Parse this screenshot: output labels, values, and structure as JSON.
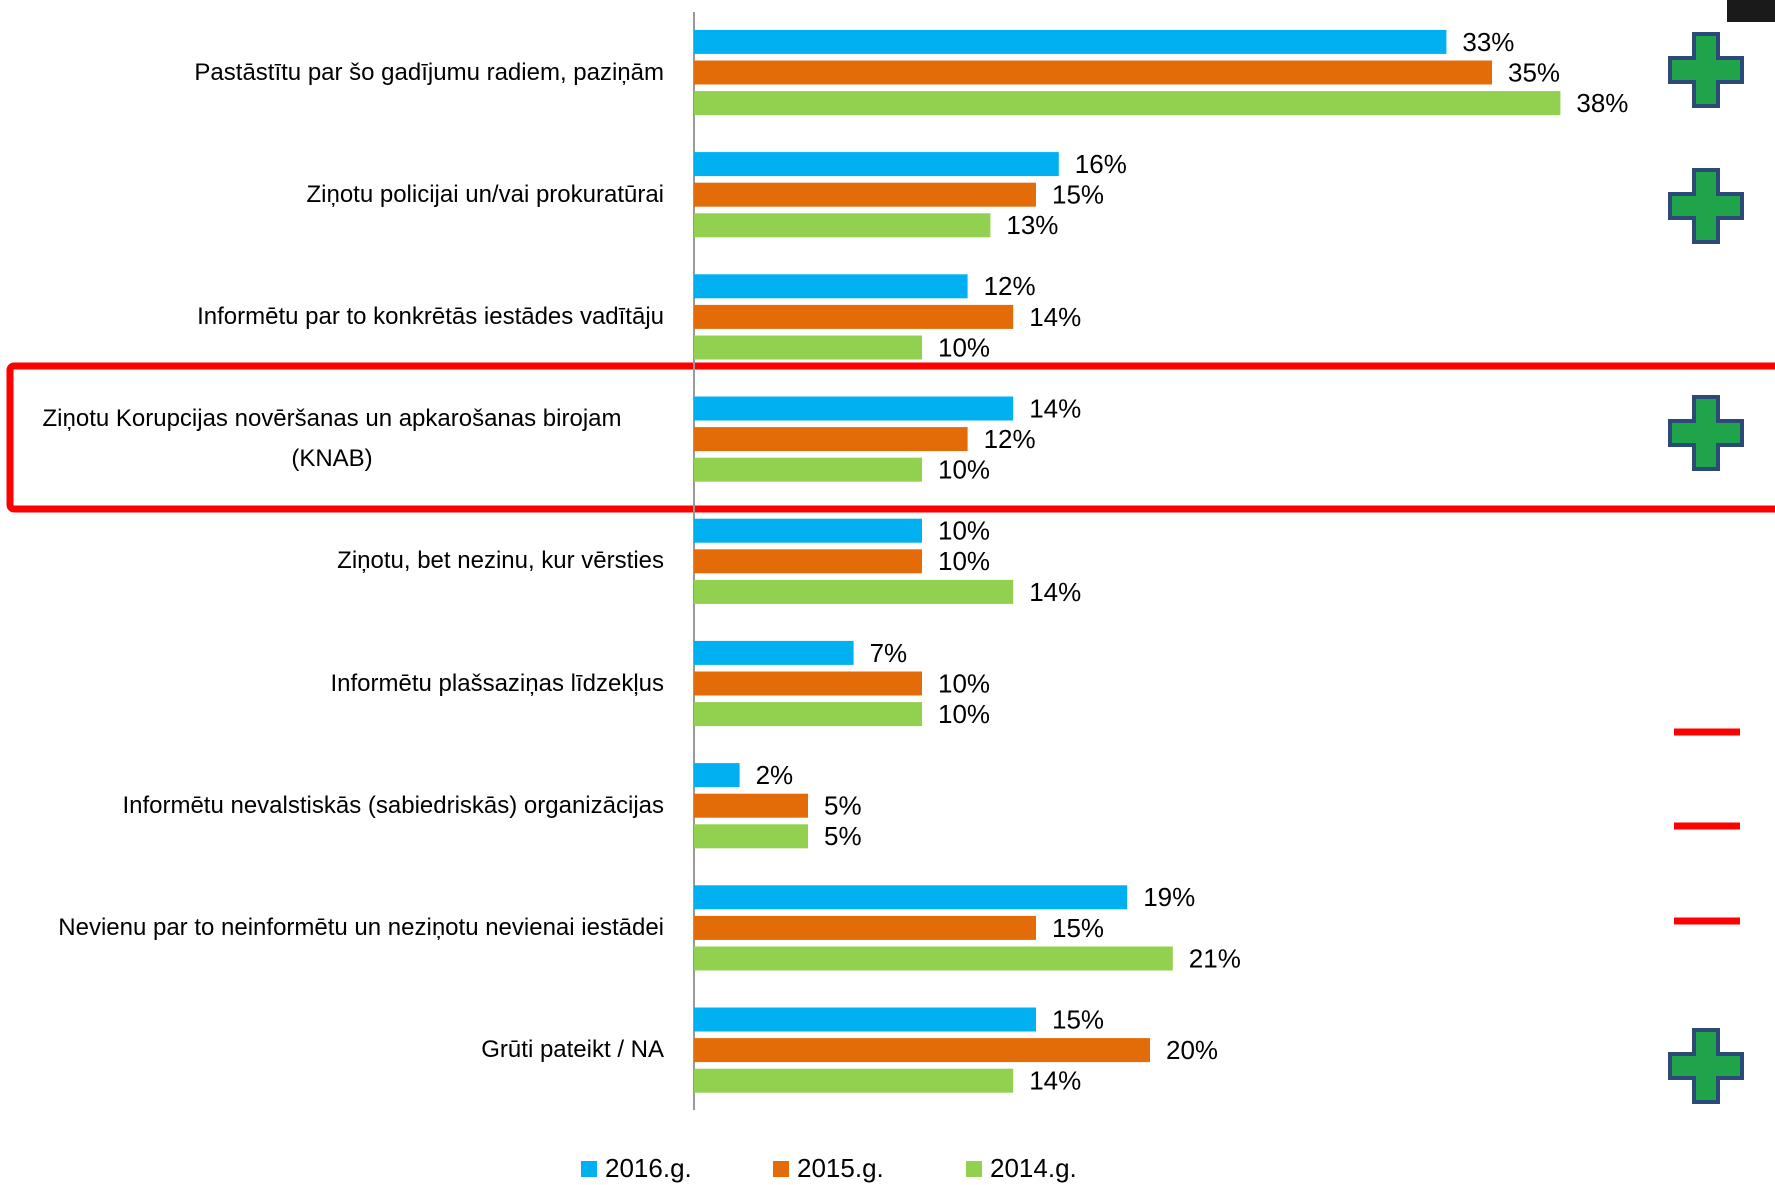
{
  "chart_data": {
    "type": "bar",
    "orientation": "horizontal",
    "categories": [
      "Pastāstītu par šo gadījumu radiem, paziņām",
      "Ziņotu policijai un/vai prokuratūrai",
      "Informētu par to konkrētās iestādes vadītāju",
      "Ziņotu Korupcijas novēršanas un apkarošanas birojam (KNAB)",
      "Ziņotu, bet nezinu, kur vērsties",
      "Informētu plašsaziņas līdzekļus",
      "Informētu nevalstiskās (sabiedriskās) organizācijas",
      "Nevienu par to neinformētu un neziņotu nevienai iestādei",
      "Grūti pateikt / NA"
    ],
    "series": [
      {
        "name": "2016.g.",
        "color": "#00b0f0",
        "values": [
          33,
          16,
          12,
          14,
          10,
          7,
          2,
          19,
          15
        ],
        "value_labels": [
          "33%",
          "16%",
          "12%",
          "14%",
          "10%",
          "7%",
          "2%",
          "19%",
          "15%"
        ]
      },
      {
        "name": "2015.g.",
        "color": "#e36c09",
        "values": [
          35,
          15,
          14,
          12,
          10,
          10,
          5,
          15,
          20
        ],
        "value_labels": [
          "35%",
          "15%",
          "14%",
          "12%",
          "10%",
          "10%",
          "5%",
          "15%",
          "20%"
        ]
      },
      {
        "name": "2014.g.",
        "color": "#92d050",
        "values": [
          38,
          13,
          10,
          10,
          14,
          10,
          5,
          21,
          14
        ],
        "value_labels": [
          "38%",
          "13%",
          "10%",
          "10%",
          "14%",
          "10%",
          "5%",
          "21%",
          "14%"
        ]
      }
    ]
  }
}
